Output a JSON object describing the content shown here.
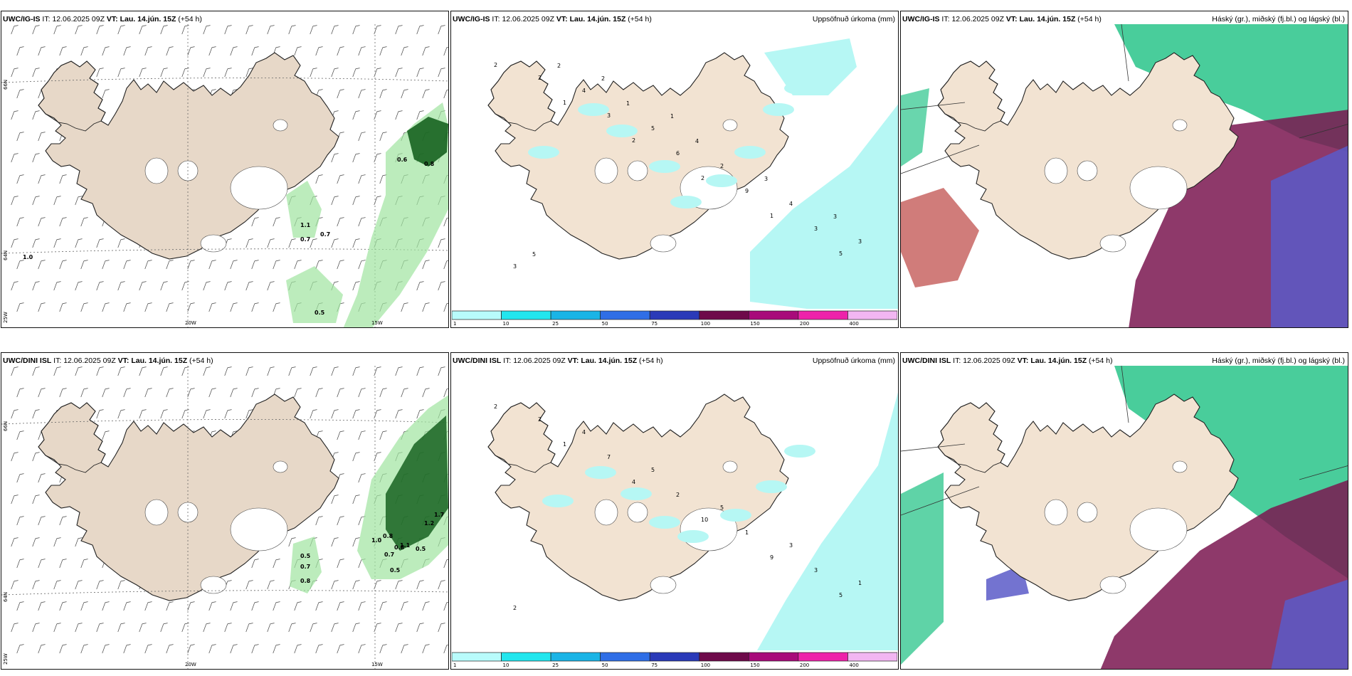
{
  "panels": [
    {
      "id": "r1c1",
      "model": "UWC/IG-IS",
      "it_prefix": "IT:",
      "it": "12.06.2025 09Z",
      "vt_prefix": "VT:",
      "vt": "Lau. 14.jún. 15Z",
      "lead": "(+54 h)",
      "right": ""
    },
    {
      "id": "r1c2",
      "model": "UWC/IG-IS",
      "it_prefix": "IT:",
      "it": "12.06.2025 09Z",
      "vt_prefix": "VT:",
      "vt": "Lau. 14.jún. 15Z",
      "lead": "(+54 h)",
      "right": "Uppsöfnuð úrkoma (mm)"
    },
    {
      "id": "r1c3",
      "model": "UWC/IG-IS",
      "it_prefix": "IT:",
      "it": "12.06.2025 09Z",
      "vt_prefix": "VT:",
      "vt": "Lau. 14.jún. 15Z",
      "lead": "(+54 h)",
      "right": "Háský (gr.), miðský (fj.bl.) og lágský (bl.)"
    },
    {
      "id": "r2c1",
      "model": "UWC/DINI ISL",
      "it_prefix": "IT:",
      "it": "12.06.2025 09Z",
      "vt_prefix": "VT:",
      "vt": "Lau. 14.jún. 15Z",
      "lead": "(+54 h)",
      "right": ""
    },
    {
      "id": "r2c2",
      "model": "UWC/DINI ISL",
      "it_prefix": "IT:",
      "it": "12.06.2025 09Z",
      "vt_prefix": "VT:",
      "vt": "Lau. 14.jún. 15Z",
      "lead": "(+54 h)",
      "right": "Uppsöfnuð úrkoma (mm)"
    },
    {
      "id": "r2c3",
      "model": "UWC/DINI ISL",
      "it_prefix": "IT:",
      "it": "12.06.2025 09Z",
      "vt_prefix": "VT:",
      "vt": "Lau. 14.jún. 15Z",
      "lead": "(+54 h)",
      "right": "Háský (gr.), miðský (fj.bl.) og lágský (bl.)"
    }
  ],
  "grid_labels": {
    "lon_20w": "20W",
    "lon_15w": "15W",
    "lat_66n": "66N",
    "lat_64n": "64N",
    "lon_25w": "25W"
  },
  "wind_values_top": [
    "1.0",
    "1.1",
    "0.7",
    "0.7",
    "0.6",
    "0.8",
    "0.5"
  ],
  "wind_values_bottom": [
    "0.5",
    "0.7",
    "0.8",
    "1.0",
    "0.8",
    "0.7",
    "0.5",
    "0.8",
    "1.1",
    "0.5",
    "1.2",
    "1.7"
  ],
  "precip_values_top": [
    "2",
    "1",
    "2",
    "2",
    "1",
    "5",
    "2",
    "3",
    "6",
    "9",
    "3",
    "3",
    "4",
    "5",
    "2",
    "4",
    "3",
    "2",
    "1",
    "4",
    "3",
    "3",
    "5",
    "2",
    "1"
  ],
  "precip_values_bottom": [
    "2",
    "1",
    "4",
    "10",
    "9",
    "5",
    "2",
    "7",
    "2",
    "1",
    "3",
    "2",
    "4",
    "5",
    "5",
    "3",
    "1"
  ],
  "legend": {
    "ticks": [
      "1",
      "10",
      "25",
      "50",
      "75",
      "100",
      "150",
      "200",
      "400"
    ],
    "colors": [
      "#b8fbfb",
      "#22e6ee",
      "#1ab4e6",
      "#2f6ee6",
      "#2a3ab8",
      "#6e0a4a",
      "#a80a7a",
      "#ee22aa",
      "#f2b6f2"
    ]
  },
  "colors": {
    "land": "#f2e3d2",
    "land_grey": "#e7d8c8",
    "green_light": "#9fe49f",
    "green_dark": "#0d5a16",
    "precip": "#b6f7f4",
    "cloud_high": "#29c48a",
    "cloud_mid": "#7a1650",
    "cloud_low": "#5a5ac8"
  }
}
